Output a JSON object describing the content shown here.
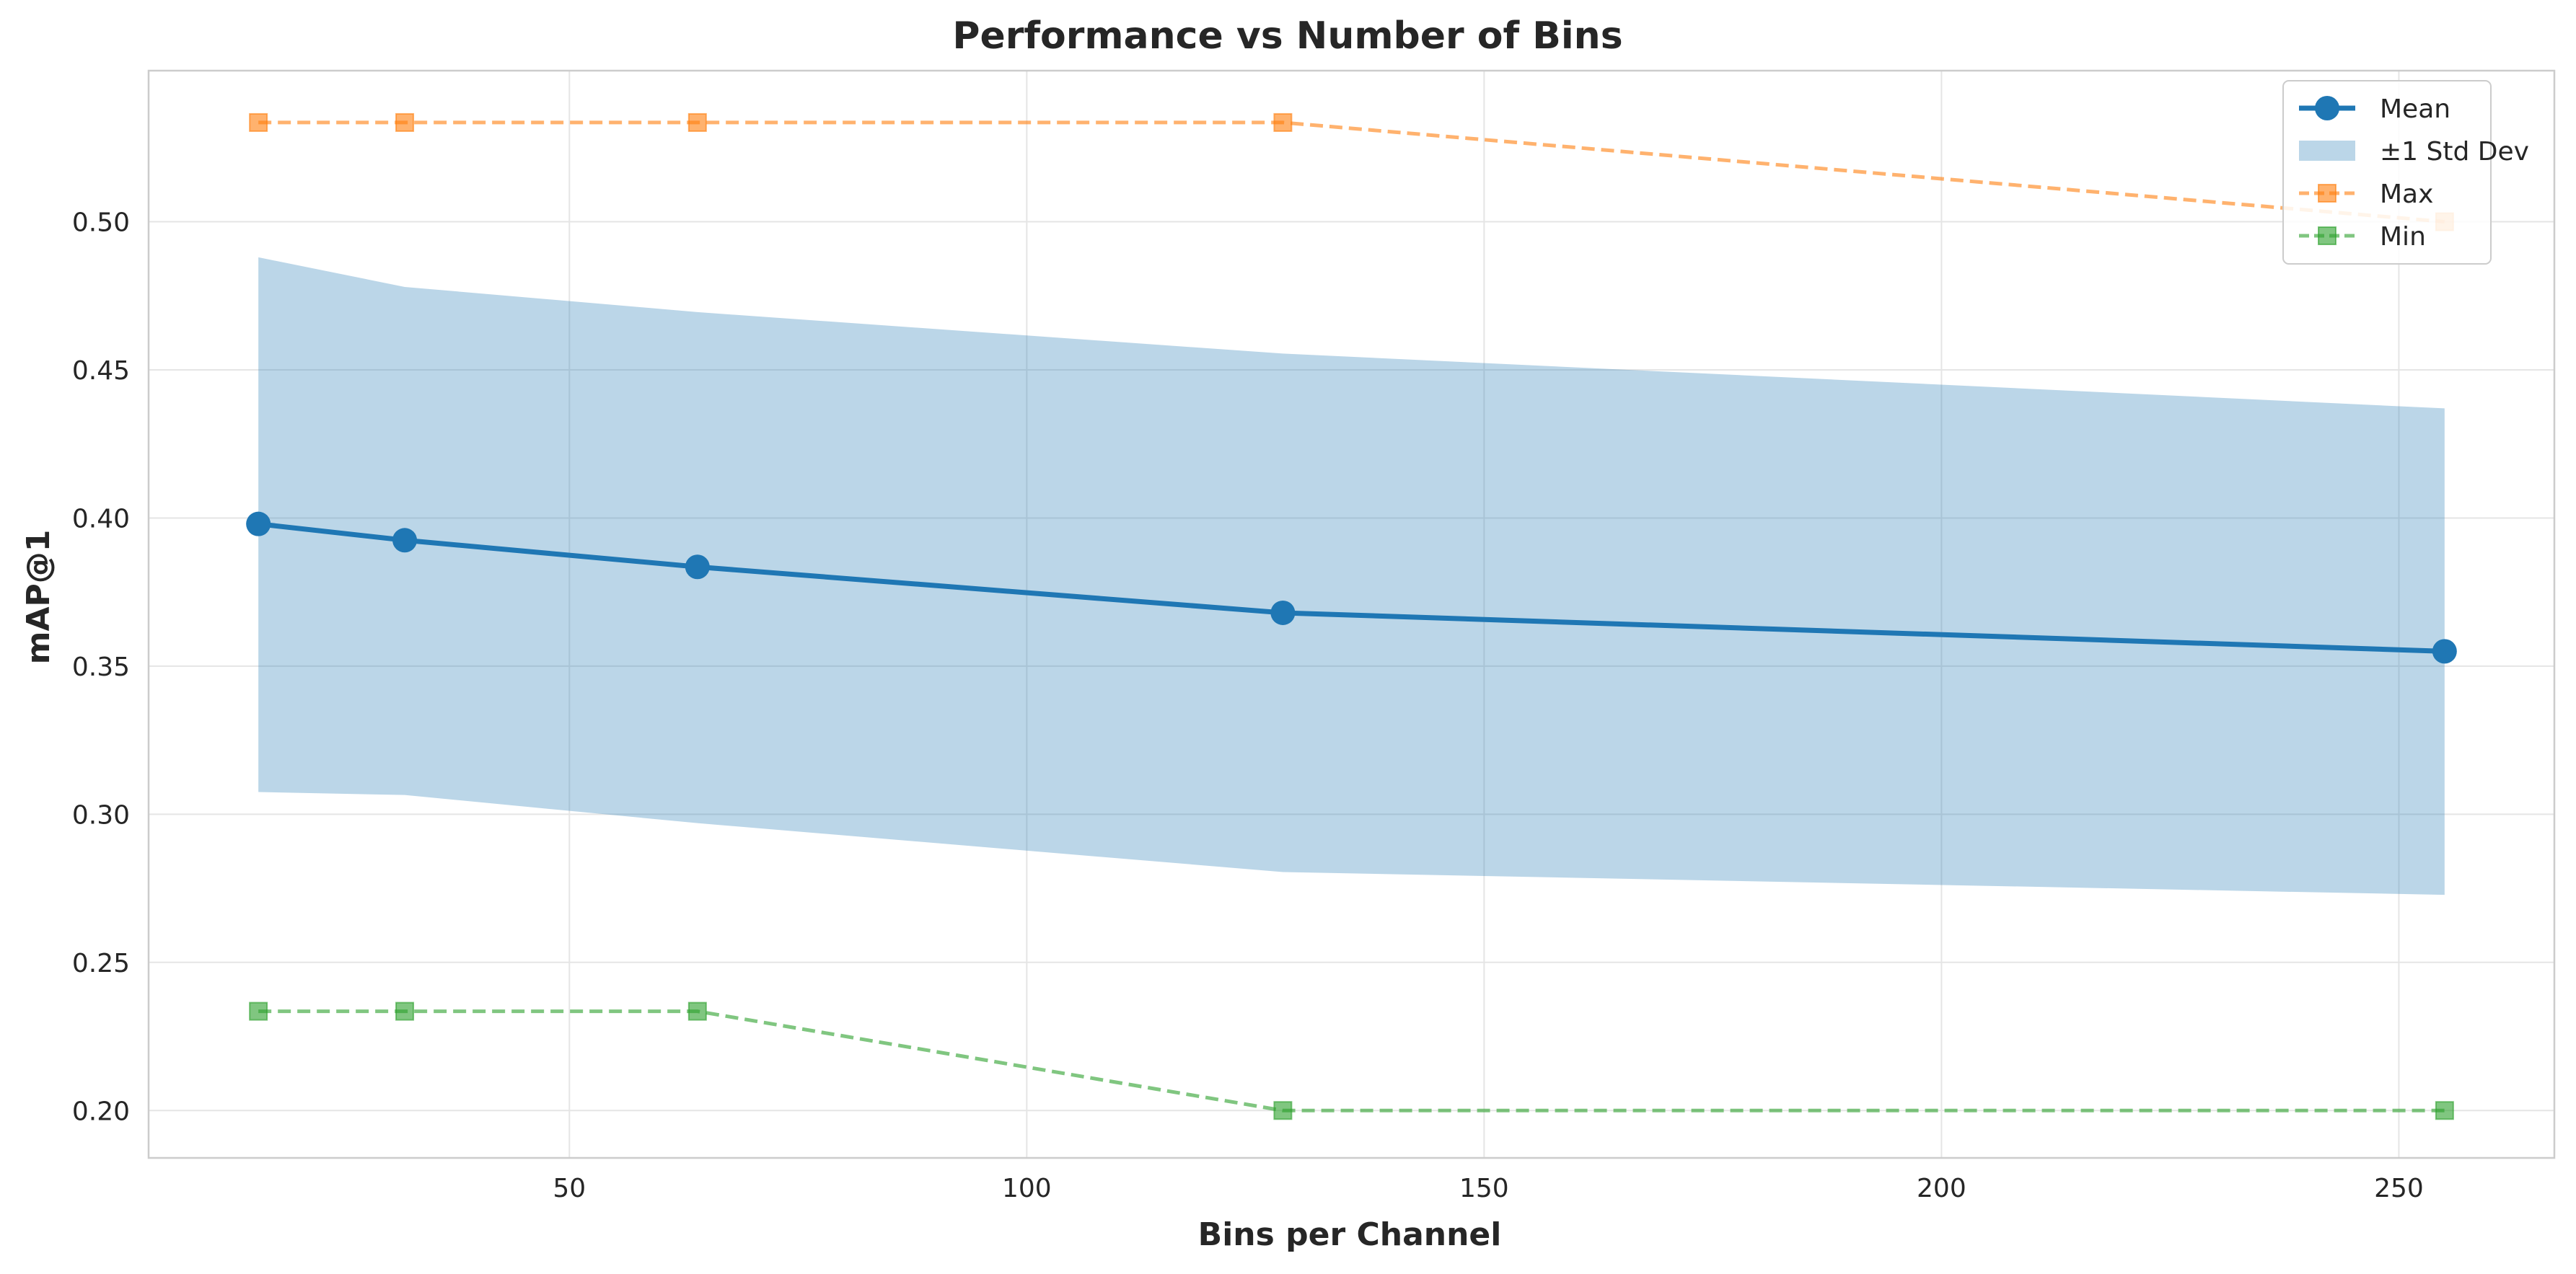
{
  "chart_data": {
    "type": "line",
    "title": "Performance vs Number of Bins",
    "xlabel": "Bins per Channel",
    "ylabel": "mAP@1",
    "x": [
      16,
      32,
      64,
      128,
      255
    ],
    "xlim": [
      4,
      267
    ],
    "ylim": [
      0.184,
      0.551
    ],
    "xticks": [
      50,
      100,
      150,
      200,
      250
    ],
    "xtick_labels": [
      "50",
      "100",
      "150",
      "200",
      "250"
    ],
    "yticks": [
      0.2,
      0.25,
      0.3,
      0.35,
      0.4,
      0.45,
      0.5
    ],
    "ytick_labels": [
      "0.20",
      "0.25",
      "0.30",
      "0.35",
      "0.40",
      "0.45",
      "0.50"
    ],
    "grid": true,
    "legend_position": "top-right",
    "series": [
      {
        "name": "Mean",
        "kind": "line",
        "values": [
          0.398,
          0.3925,
          0.3835,
          0.368,
          0.355
        ],
        "color": "#1f77b4"
      },
      {
        "name": "±1 Std Dev",
        "kind": "band",
        "upper": [
          0.488,
          0.478,
          0.4695,
          0.4555,
          0.437
        ],
        "lower": [
          0.3075,
          0.3065,
          0.297,
          0.2805,
          0.2728
        ],
        "color": "#1f77b4"
      },
      {
        "name": "Max",
        "kind": "dashed",
        "values": [
          0.5335,
          0.5335,
          0.5335,
          0.5335,
          0.5
        ],
        "color": "#ff7f0e"
      },
      {
        "name": "Min",
        "kind": "dashed",
        "values": [
          0.2335,
          0.2335,
          0.2335,
          0.2,
          0.2
        ],
        "color": "#2ca02c"
      }
    ]
  }
}
